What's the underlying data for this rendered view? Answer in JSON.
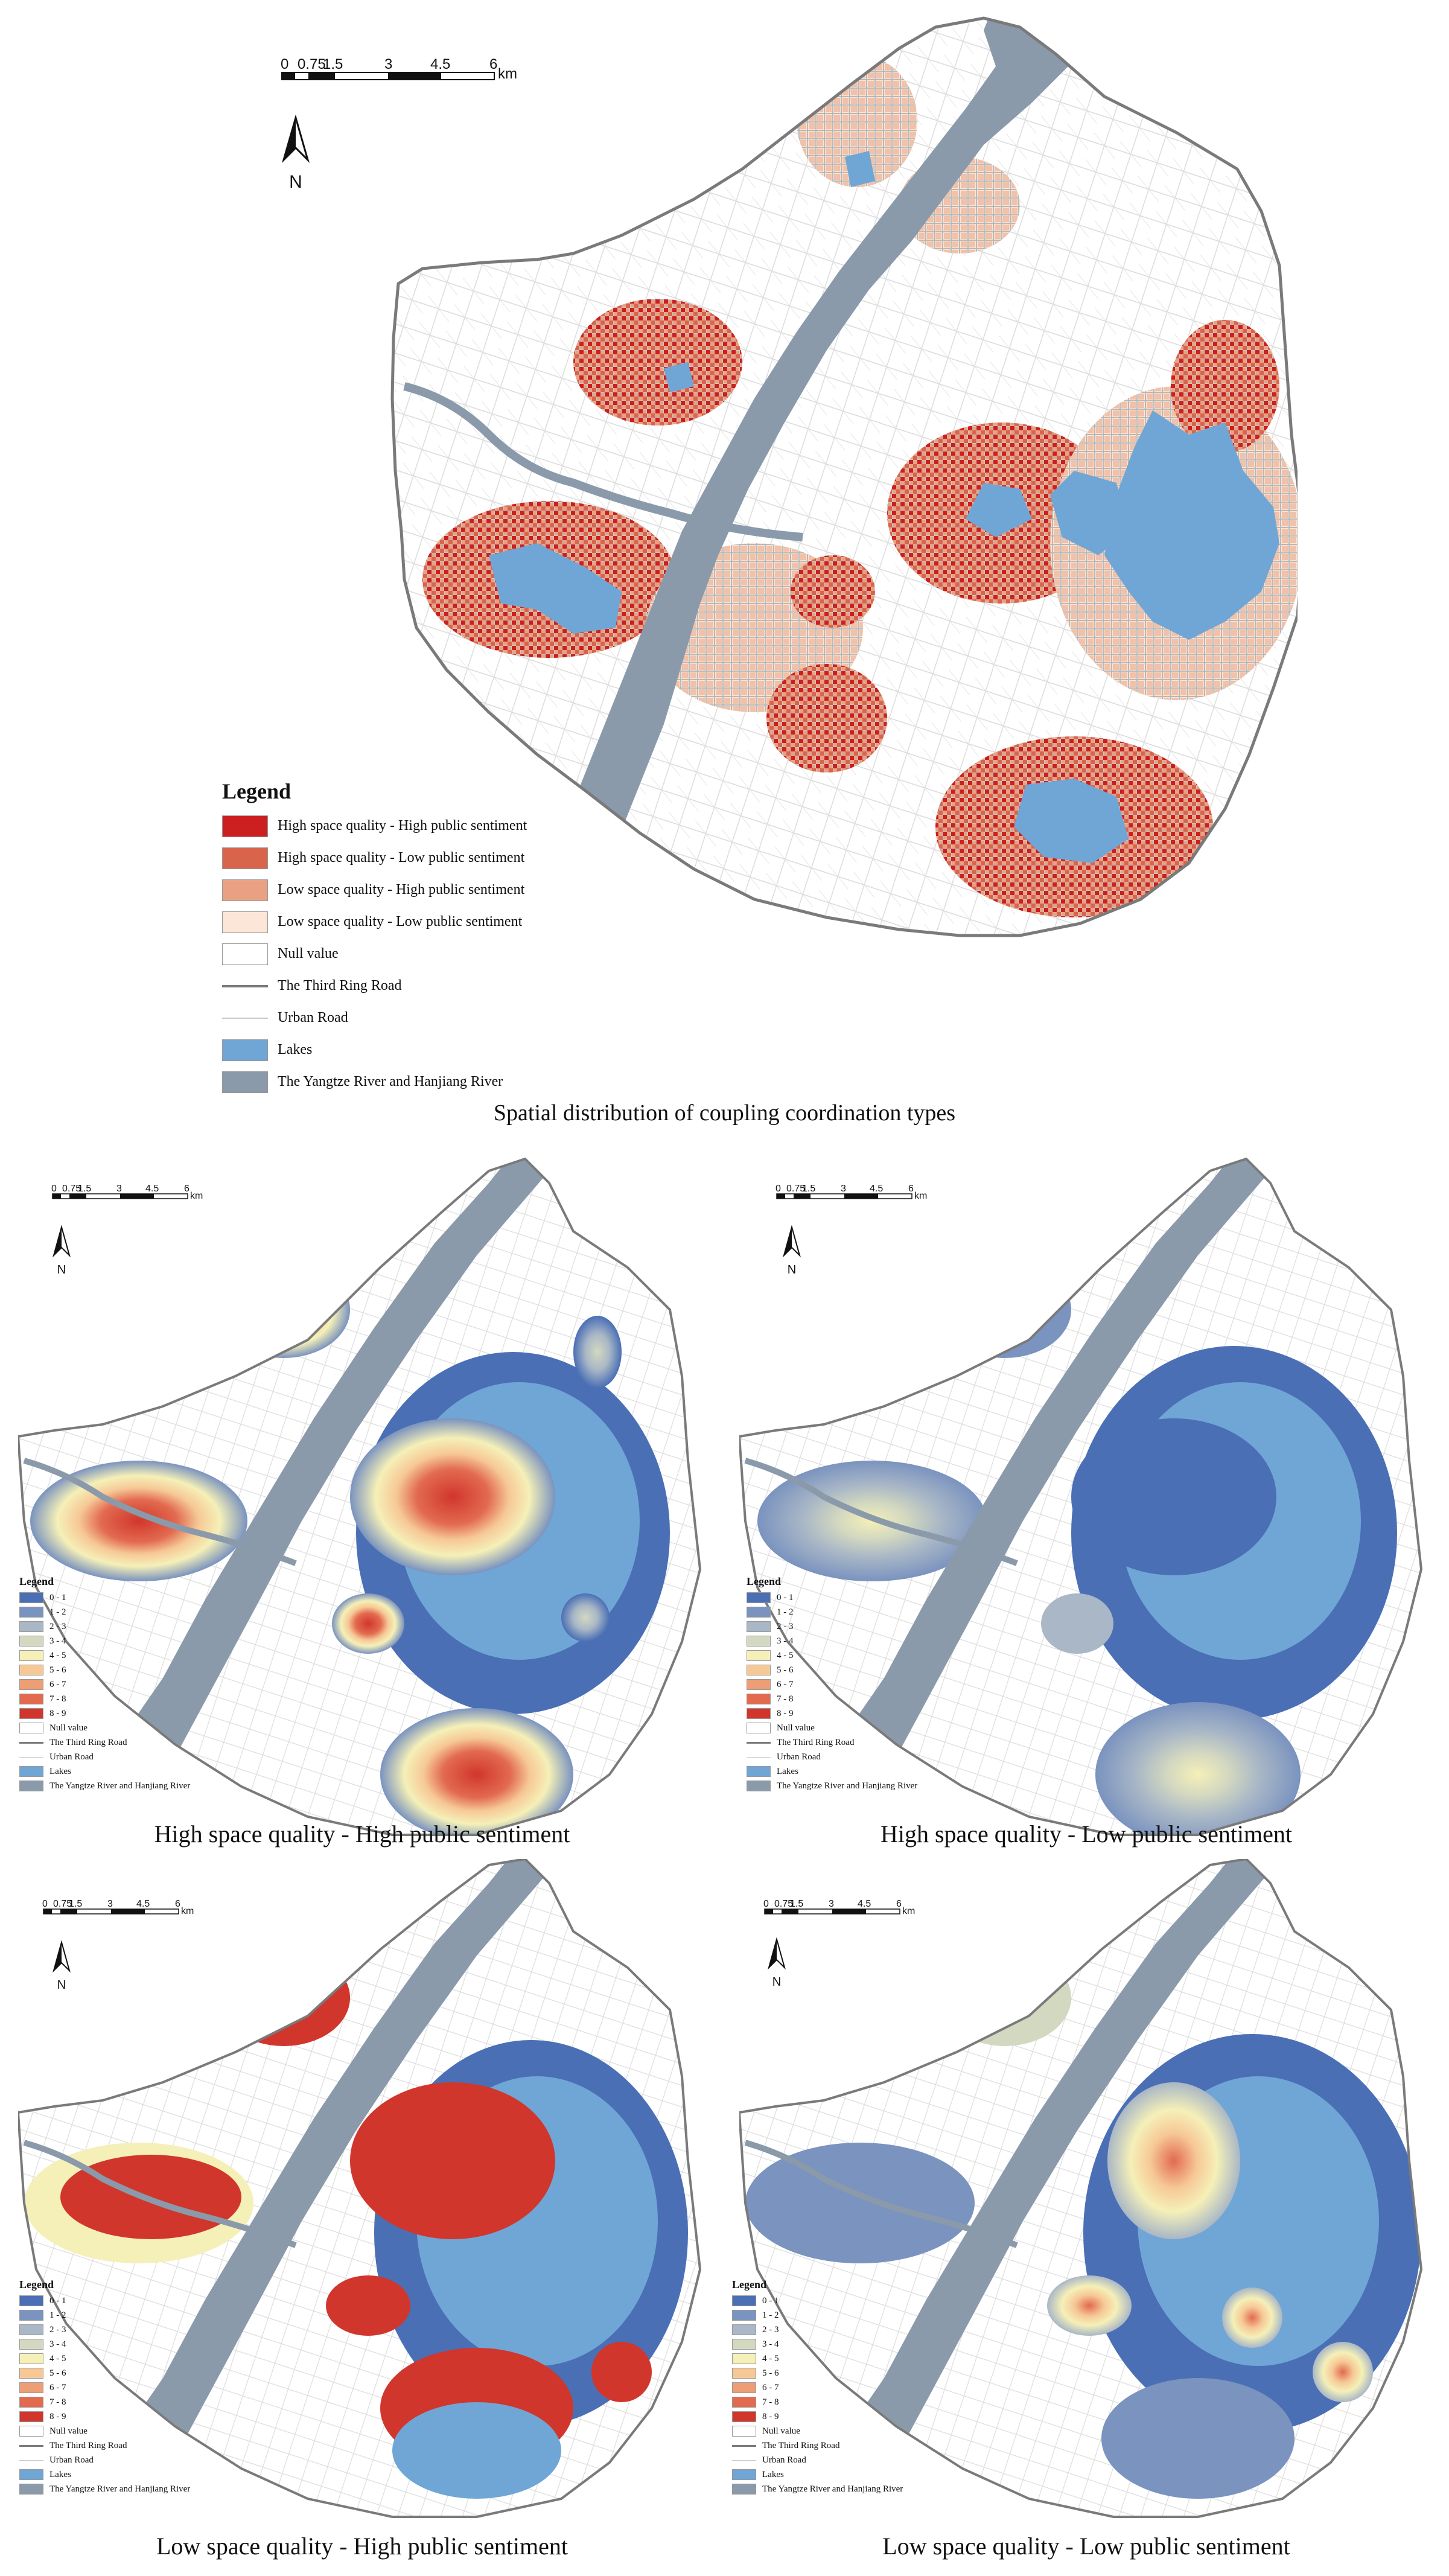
{
  "scale_bar": {
    "ticks": [
      "0",
      "0.75",
      "1.5",
      "3",
      "4.5",
      "6"
    ],
    "unit": "km"
  },
  "north_label": "N",
  "main_map": {
    "caption": "Spatial distribution of coupling coordination types",
    "legend": {
      "title": "Legend",
      "items": [
        {
          "label": "High space quality - High public sentiment",
          "color": "#cc1f1f",
          "kind": "fill"
        },
        {
          "label": "High space quality - Low public sentiment",
          "color": "#d9644c",
          "kind": "fill"
        },
        {
          "label": "Low space quality - High public sentiment",
          "color": "#e8a283",
          "kind": "fill"
        },
        {
          "label": "Low space quality - Low public sentiment",
          "color": "#fbe6d7",
          "kind": "fill"
        },
        {
          "label": "Null value",
          "color": "#ffffff",
          "kind": "fill"
        },
        {
          "label": "The Third Ring Road",
          "color": "#7a7a7a",
          "kind": "line"
        },
        {
          "label": "Urban Road",
          "color": "#c9c9c9",
          "kind": "thinline"
        },
        {
          "label": "Lakes",
          "color": "#6fa6d6",
          "kind": "fill"
        },
        {
          "label": "The Yangtze River and Hanjiang River",
          "color": "#8a9aaa",
          "kind": "fill"
        }
      ]
    }
  },
  "density_legend": {
    "title": "Legend",
    "classes": [
      {
        "label": "0 - 1",
        "color": "#4a6fb5"
      },
      {
        "label": "1 - 2",
        "color": "#7a93bf"
      },
      {
        "label": "2 - 3",
        "color": "#a9b7c6"
      },
      {
        "label": "3 - 4",
        "color": "#d3d8c0"
      },
      {
        "label": "4 - 5",
        "color": "#f5f0b8"
      },
      {
        "label": "5 - 6",
        "color": "#f6c896"
      },
      {
        "label": "6 - 7",
        "color": "#ee9e74"
      },
      {
        "label": "7 - 8",
        "color": "#e26a4f"
      },
      {
        "label": "8 - 9",
        "color": "#d1362c"
      }
    ],
    "extras": [
      {
        "label": "Null value",
        "color": "#ffffff",
        "kind": "fill"
      },
      {
        "label": "The Third Ring Road",
        "color": "#7a7a7a",
        "kind": "line"
      },
      {
        "label": "Urban Road",
        "color": "#c9c9c9",
        "kind": "thinline"
      },
      {
        "label": "Lakes",
        "color": "#6fa6d6",
        "kind": "fill"
      },
      {
        "label": "The Yangtze River and Hanjiang River",
        "color": "#8a9aaa",
        "kind": "fill"
      }
    ]
  },
  "sub_maps": [
    {
      "caption": "High space quality - High public sentiment"
    },
    {
      "caption": "High space quality - Low public sentiment"
    },
    {
      "caption": "Low space quality - High public sentiment"
    },
    {
      "caption": "Low space quality - Low public sentiment"
    }
  ],
  "colors": {
    "boundary": "#7a7a7a",
    "river": "#8a9aaa",
    "lake": "#6fa6d6",
    "road": "#d4d4d4"
  }
}
